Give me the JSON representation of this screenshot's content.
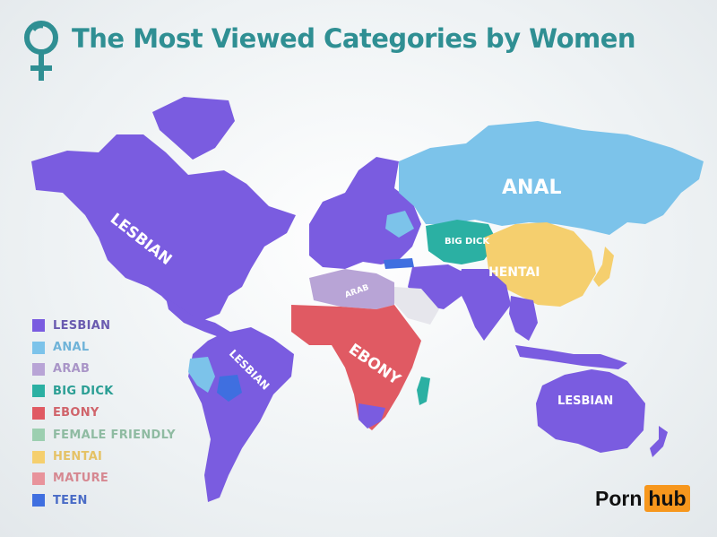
{
  "title": "The Most Viewed Categories by Women",
  "icon": "female-symbol-icon",
  "colors": {
    "title": "#2f8f93",
    "lesbian": "#7a5ce0",
    "anal": "#7cc3ea",
    "arab": "#b8a4d6",
    "big_dick": "#2bb0a3",
    "ebony": "#e05a63",
    "female_friendly": "#9ccfb0",
    "hentai": "#f5cf6e",
    "mature": "#e8939b",
    "teen": "#3f6fe0"
  },
  "map_labels": {
    "north_america": "LESBIAN",
    "russia": "ANAL",
    "central_asia": "BIG DICK",
    "china": "HENTAI",
    "middle_east": "ARAB",
    "africa": "EBONY",
    "south_america": "LESBIAN",
    "australia": "LESBIAN"
  },
  "legend": [
    {
      "label": "LESBIAN",
      "color": "#7a5ce0",
      "text_color": "#6a5bb0"
    },
    {
      "label": "ANAL",
      "color": "#7cc3ea",
      "text_color": "#6fb3d8"
    },
    {
      "label": "ARAB",
      "color": "#b8a4d6",
      "text_color": "#a995c7"
    },
    {
      "label": "BIG DICK",
      "color": "#2bb0a3",
      "text_color": "#2a9e94"
    },
    {
      "label": "EBONY",
      "color": "#e05a63",
      "text_color": "#d0646b"
    },
    {
      "label": "FEMALE FRIENDLY",
      "color": "#9ccfb0",
      "text_color": "#8fbba2"
    },
    {
      "label": "HENTAI",
      "color": "#f5cf6e",
      "text_color": "#e5c266"
    },
    {
      "label": "MATURE",
      "color": "#e8939b",
      "text_color": "#d68891"
    },
    {
      "label": "TEEN",
      "color": "#3f6fe0",
      "text_color": "#4a6cc6"
    }
  ],
  "logo": {
    "left": "Porn",
    "right": "hub"
  }
}
